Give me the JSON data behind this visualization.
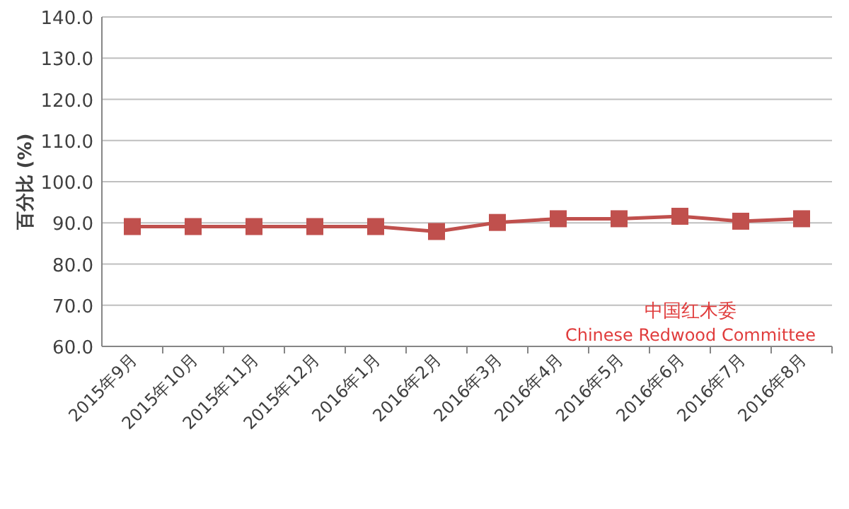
{
  "chart_data": {
    "type": "line",
    "ylabel": "百分比 (%)",
    "categories": [
      "2015年9月",
      "2015年10月",
      "2015年11月",
      "2015年12月",
      "2016年1月",
      "2016年2月",
      "2016年3月",
      "2016年4月",
      "2016年5月",
      "2016年6月",
      "2016年7月",
      "2016年8月"
    ],
    "series": [
      {
        "color": "#c0504d",
        "values": [
          89.1,
          89.1,
          89.1,
          89.1,
          89.1,
          87.9,
          90.1,
          91.0,
          91.0,
          91.6,
          90.4,
          91.0
        ]
      }
    ],
    "ylim": [
      60,
      140
    ],
    "yticks": [
      {
        "value": 60,
        "label": "60.0"
      },
      {
        "value": 70,
        "label": "70.0"
      },
      {
        "value": 80,
        "label": "80.0"
      },
      {
        "value": 90,
        "label": "90.0"
      },
      {
        "value": 100,
        "label": "100.0"
      },
      {
        "value": 110,
        "label": "110.0"
      },
      {
        "value": 120,
        "label": "120.0"
      },
      {
        "value": 130,
        "label": "130.0"
      },
      {
        "value": 140,
        "label": "140.0"
      }
    ],
    "grid": "y",
    "marker": "square",
    "line_style": "solid",
    "annotations": [
      "中国红木委",
      "Chinese Redwood Committee"
    ]
  }
}
